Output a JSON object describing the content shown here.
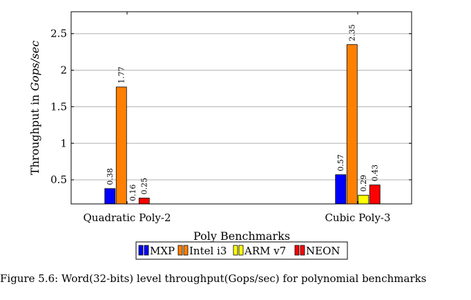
{
  "chart_data": {
    "type": "bar",
    "categories": [
      "Quadratic Poly-2",
      "Cubic Poly-3"
    ],
    "series": [
      {
        "name": "MXP",
        "values": [
          0.38,
          0.57
        ],
        "color": "#0000ff"
      },
      {
        "name": "Intel i3",
        "values": [
          1.77,
          2.35
        ],
        "color": "#ff8000"
      },
      {
        "name": "ARM v7",
        "values": [
          0.16,
          0.29
        ],
        "color": "#ffff00"
      },
      {
        "name": "NEON",
        "values": [
          0.25,
          0.43
        ],
        "color": "#ff0000"
      }
    ],
    "data_labels": [
      [
        "0.38",
        "0.57"
      ],
      [
        "1.77",
        "2.35"
      ],
      [
        "0.16",
        "0.29"
      ],
      [
        "0.25",
        "0.43"
      ]
    ],
    "xlabel": "Poly Benchmarks",
    "ylabel_prefix": "Throughput in ",
    "ylabel_unit": "Gops/sec",
    "ylim": [
      0.17,
      2.8
    ],
    "yticks": [
      0.5,
      1,
      1.5,
      2,
      2.5
    ],
    "ytick_labels": [
      "0.5",
      "1",
      "1.5",
      "2",
      "2.5"
    ],
    "grid": true,
    "legend_position": "bottom"
  },
  "caption": "Figure 5.6: Word(32-bits) level throughput(Gops/sec) for polynomial benchmarks"
}
